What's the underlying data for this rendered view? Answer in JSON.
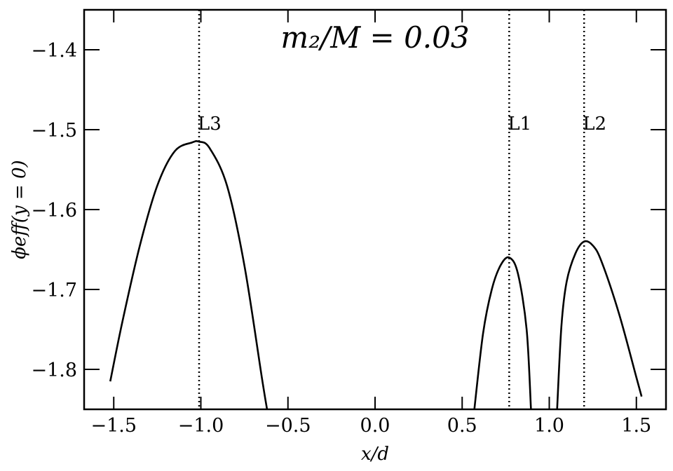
{
  "chart_data": {
    "type": "line",
    "title": "m₂/M = 0.03",
    "xlabel": "x/d",
    "ylabel": "ϕeff(y = 0)",
    "xlim": [
      -1.67,
      1.67
    ],
    "ylim": [
      -1.85,
      -1.35
    ],
    "x_ticks": [
      -1.5,
      -1.0,
      -0.5,
      0.0,
      0.5,
      1.0,
      1.5
    ],
    "x_tick_labels": [
      "−1.5",
      "−1.0",
      "−0.5",
      "0.0",
      "0.5",
      "1.0",
      "1.5"
    ],
    "y_ticks": [
      -1.4,
      -1.5,
      -1.6,
      -1.7,
      -1.8
    ],
    "y_tick_labels": [
      "−1.4",
      "−1.5",
      "−1.6",
      "−1.7",
      "−1.8"
    ],
    "grid": false,
    "color": "#000000",
    "lagrange_points": [
      {
        "label": "L3",
        "x": -1.01
      },
      {
        "label": "L1",
        "x": 0.77
      },
      {
        "label": "L2",
        "x": 1.2
      }
    ],
    "series": [
      {
        "x": [
          -1.52,
          -1.45,
          -1.35,
          -1.25,
          -1.15,
          -1.05,
          -1.01,
          -0.95,
          -0.85,
          -0.75,
          -0.65,
          -0.62
        ],
        "y": [
          -1.815,
          -1.74,
          -1.645,
          -1.57,
          -1.527,
          -1.516,
          -1.515,
          -1.523,
          -1.57,
          -1.67,
          -1.81,
          -1.85
        ]
      },
      {
        "x": [
          0.57,
          0.62,
          0.67,
          0.72,
          0.77,
          0.82,
          0.87,
          0.895
        ],
        "y": [
          -1.85,
          -1.755,
          -1.7,
          -1.67,
          -1.66,
          -1.68,
          -1.75,
          -1.85
        ]
      },
      {
        "x": [
          1.045,
          1.07,
          1.1,
          1.15,
          1.2,
          1.25,
          1.3,
          1.4,
          1.5,
          1.53
        ],
        "y": [
          -1.85,
          -1.745,
          -1.69,
          -1.655,
          -1.64,
          -1.645,
          -1.665,
          -1.73,
          -1.81,
          -1.834
        ]
      }
    ]
  }
}
